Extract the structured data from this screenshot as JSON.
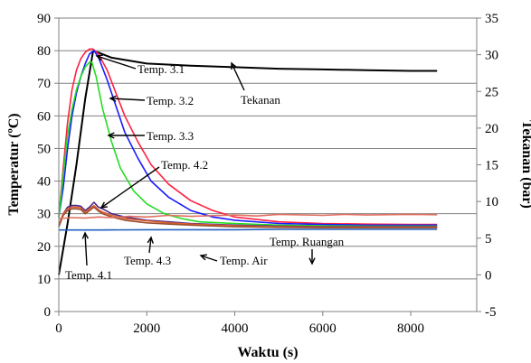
{
  "chart_data": {
    "type": "line",
    "xlabel": "Waktu (s)",
    "ylabel": "Temperatur (ºC)",
    "y2label": "Tekanan (bar)",
    "xlim": [
      0,
      9500
    ],
    "ylim": [
      0,
      90
    ],
    "y2lim": [
      -5,
      35
    ],
    "xticks": [
      0,
      2000,
      4000,
      6000,
      8000
    ],
    "yticks": [
      0,
      10,
      20,
      30,
      40,
      50,
      60,
      70,
      80,
      90
    ],
    "y2ticks": [
      -5,
      0,
      5,
      10,
      15,
      20,
      25,
      30,
      35
    ],
    "grid": "horizontal",
    "series": [
      {
        "name": "Tekanan",
        "axis": "right",
        "color": "#000000",
        "x": [
          0,
          200,
          400,
          600,
          780,
          900,
          1200,
          1600,
          2000,
          3000,
          4000,
          5000,
          6000,
          7000,
          8000,
          8600
        ],
        "y": [
          0,
          7,
          15,
          24,
          30.5,
          30.3,
          29.6,
          29.2,
          28.8,
          28.5,
          28.3,
          28.1,
          28.0,
          27.9,
          27.8,
          27.8
        ]
      },
      {
        "name": "Temp. 3.1",
        "axis": "left",
        "color": "#ff2040",
        "x": [
          0,
          100,
          200,
          300,
          400,
          500,
          600,
          700,
          780,
          900,
          1100,
          1300,
          1500,
          1800,
          2100,
          2500,
          3000,
          3500,
          4000,
          5000,
          6000,
          7000,
          8000,
          8600
        ],
        "y": [
          29,
          44,
          58,
          68,
          74,
          77.5,
          79.5,
          80.5,
          80.5,
          79,
          74,
          67,
          60,
          52,
          45,
          39,
          34,
          31,
          29,
          27.5,
          27,
          26.8,
          26.7,
          26.7
        ]
      },
      {
        "name": "Temp. 3.2",
        "axis": "left",
        "color": "#1a1aff",
        "x": [
          0,
          100,
          200,
          300,
          400,
          500,
          600,
          700,
          800,
          900,
          1100,
          1300,
          1500,
          1800,
          2100,
          2500,
          3000,
          3500,
          4000,
          5000,
          6000,
          7000,
          8000,
          8600
        ],
        "y": [
          29,
          38,
          50,
          60,
          67,
          72,
          76,
          79,
          80,
          78,
          71,
          63,
          55,
          47,
          40,
          35,
          31,
          29,
          28,
          27,
          26.7,
          26.5,
          26.5,
          26.5
        ]
      },
      {
        "name": "Temp. 3.3",
        "axis": "left",
        "color": "#22dd22",
        "x": [
          0,
          100,
          200,
          300,
          400,
          500,
          600,
          700,
          750,
          850,
          1000,
          1200,
          1400,
          1700,
          2000,
          2400,
          2800,
          3200,
          4000,
          5000,
          6000,
          7000,
          8000,
          8600
        ],
        "y": [
          29,
          42,
          54,
          62,
          68,
          72,
          75,
          76.5,
          76.5,
          72,
          62,
          52,
          44,
          37,
          33,
          30,
          28.5,
          27.5,
          27,
          26.5,
          26.3,
          26.2,
          26.2,
          26.2
        ]
      },
      {
        "name": "Temp. 4.1",
        "axis": "left",
        "color": "#4a2a8a",
        "x": [
          0,
          100,
          200,
          300,
          400,
          500,
          600,
          700,
          800,
          900,
          1000,
          1200,
          1500,
          2000,
          2500,
          3000,
          4000,
          5000,
          6000,
          7000,
          8000,
          8600
        ],
        "y": [
          26,
          30,
          32,
          32.5,
          32.5,
          32.3,
          31,
          32,
          33.5,
          32,
          31.5,
          30,
          29,
          28,
          27.5,
          27,
          26.5,
          26.2,
          26,
          26,
          26,
          26
        ]
      },
      {
        "name": "Temp. 4.2",
        "axis": "left",
        "color": "#e06030",
        "x": [
          0,
          100,
          200,
          300,
          400,
          500,
          600,
          700,
          800,
          900,
          1000,
          1200,
          1500,
          2000,
          2500,
          3000,
          4000,
          5000,
          6000,
          7000,
          8000,
          8600
        ],
        "y": [
          26.5,
          30,
          31.5,
          32,
          32,
          31.8,
          30.5,
          31.5,
          32.5,
          31.2,
          30.5,
          29.5,
          28.5,
          27.8,
          27.2,
          26.8,
          26.3,
          26,
          25.9,
          25.9,
          25.9,
          25.9
        ]
      },
      {
        "name": "Temp. 4.3",
        "axis": "left",
        "color": "#9a5030",
        "x": [
          0,
          100,
          200,
          300,
          400,
          500,
          600,
          700,
          800,
          900,
          1000,
          1200,
          1500,
          2000,
          2500,
          3000,
          4000,
          5000,
          6000,
          7000,
          8000,
          8600
        ],
        "y": [
          26,
          29.5,
          31,
          31.5,
          31.5,
          31.3,
          30,
          31,
          32,
          30.8,
          30,
          29,
          28,
          27.2,
          26.8,
          26.5,
          26,
          25.8,
          25.7,
          25.7,
          25.7,
          25.7
        ]
      },
      {
        "name": "Temp. Ruangan",
        "axis": "left",
        "color": "#e07060",
        "x": [
          0,
          300,
          600,
          900,
          1200,
          1600,
          2000,
          2500,
          3000,
          4000,
          4500,
          5000,
          6000,
          6500,
          7000,
          8000,
          8600
        ],
        "y": [
          28.5,
          28.8,
          28.7,
          29,
          28.8,
          29.2,
          29.0,
          29.5,
          29.2,
          29.6,
          29.3,
          29.8,
          29.5,
          29.8,
          29.6,
          29.8,
          29.7
        ]
      },
      {
        "name": "Temp. Air",
        "axis": "left",
        "color": "#2060c0",
        "x": [
          0,
          1000,
          2000,
          3000,
          4000,
          5000,
          6000,
          7000,
          8000,
          8600
        ],
        "y": [
          25,
          25,
          25.1,
          25.1,
          25.1,
          25.2,
          25.2,
          25.2,
          25.2,
          25.2
        ]
      }
    ],
    "annotations": [
      {
        "text": "Temp. 3.1"
      },
      {
        "text": "Tekanan"
      },
      {
        "text": "Temp. 3.2"
      },
      {
        "text": "Temp. 3.3"
      },
      {
        "text": "Temp. 4.2"
      },
      {
        "text": "Temp. Ruangan"
      },
      {
        "text": "Temp. 4.1"
      },
      {
        "text": "Temp. 4.3"
      },
      {
        "text": "Temp. Air"
      }
    ]
  }
}
